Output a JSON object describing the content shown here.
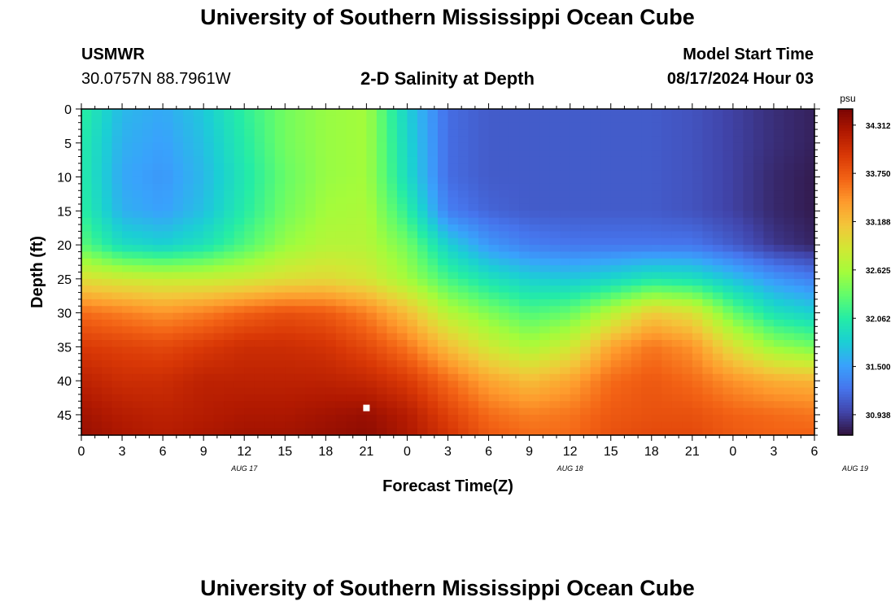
{
  "header": {
    "title": "University of Southern Mississippi Ocean Cube",
    "station": "USMWR",
    "coords": "30.0757N  88.7961W",
    "subtitle": "2-D Salinity at Depth",
    "model_start_label": "Model Start Time",
    "model_start_value": "08/17/2024 Hour 03"
  },
  "footer": {
    "title": "University of Southern Mississippi Ocean Cube"
  },
  "colors": {
    "colormap": [
      "#30123b",
      "#4145ab",
      "#4675ed",
      "#39a2fc",
      "#1bcfd4",
      "#24eca6",
      "#61fc6c",
      "#a4fc3b",
      "#d1e834",
      "#f3c63a",
      "#fe9b2d",
      "#f36315",
      "#d93806",
      "#b11901",
      "#7a0403"
    ],
    "marker": "#ffffff"
  },
  "chart_data": {
    "type": "heatmap",
    "xlabel": "Forecast Time(Z)",
    "ylabel": "Depth (ft)",
    "colorbar_unit": "psu",
    "x_tick_labels": [
      "0",
      "3",
      "6",
      "9",
      "12",
      "15",
      "18",
      "21",
      "0",
      "3",
      "6",
      "9",
      "12",
      "15",
      "18",
      "21",
      "0",
      "3",
      "6"
    ],
    "date_labels": [
      {
        "label": "AUG 17",
        "hour_index": 12
      },
      {
        "label": "AUG 18",
        "hour_index": 36
      },
      {
        "label": "AUG 19",
        "hour_index": 57
      }
    ],
    "y_ticks": [
      0,
      5,
      10,
      15,
      20,
      25,
      30,
      35,
      40,
      45
    ],
    "ylim": [
      0,
      48
    ],
    "xlim_hours": [
      0,
      54
    ],
    "color_range": [
      30.7,
      34.5
    ],
    "colorbar_ticks": [
      34.312,
      33.75,
      33.188,
      32.625,
      32.062,
      31.5,
      30.938
    ],
    "marker": {
      "hour_index": 21,
      "depth": 44
    },
    "salinity_grid": {
      "hours": [
        0,
        3,
        6,
        9,
        12,
        15,
        18,
        21,
        24,
        27,
        30,
        33,
        36,
        39,
        42,
        45,
        48,
        51,
        54
      ],
      "depths": [
        0,
        5,
        10,
        15,
        20,
        25,
        30,
        35,
        40,
        45,
        48
      ],
      "values": [
        [
          32.1,
          31.65,
          31.55,
          31.75,
          32.1,
          32.4,
          32.55,
          32.6,
          31.8,
          31.2,
          31.1,
          31.1,
          31.1,
          31.1,
          31.1,
          31.05,
          30.95,
          30.85,
          30.78
        ],
        [
          32.05,
          31.6,
          31.5,
          31.7,
          32.05,
          32.4,
          32.55,
          32.6,
          31.85,
          31.2,
          31.1,
          31.1,
          31.1,
          31.1,
          31.1,
          31.05,
          30.95,
          30.85,
          30.78
        ],
        [
          32.05,
          31.55,
          31.45,
          31.65,
          32.0,
          32.35,
          32.55,
          32.6,
          31.9,
          31.2,
          31.1,
          31.1,
          31.1,
          31.1,
          31.1,
          31.05,
          30.95,
          30.82,
          30.75
        ],
        [
          32.1,
          31.6,
          31.5,
          31.7,
          32.05,
          32.4,
          32.6,
          32.65,
          32.1,
          31.3,
          31.15,
          31.1,
          31.1,
          31.1,
          31.1,
          31.05,
          30.95,
          30.82,
          30.75
        ],
        [
          32.3,
          31.9,
          31.8,
          31.95,
          32.25,
          32.55,
          32.7,
          32.7,
          32.4,
          31.8,
          31.45,
          31.3,
          31.25,
          31.25,
          31.25,
          31.25,
          31.1,
          30.9,
          30.8
        ],
        [
          32.95,
          32.85,
          32.8,
          32.8,
          32.85,
          32.95,
          33.0,
          32.9,
          32.6,
          32.2,
          31.95,
          31.8,
          31.75,
          31.85,
          32.0,
          31.95,
          31.7,
          31.45,
          31.3
        ],
        [
          33.65,
          33.55,
          33.45,
          33.55,
          33.7,
          33.8,
          33.75,
          33.55,
          33.2,
          32.7,
          32.45,
          32.25,
          32.35,
          32.7,
          33.1,
          32.95,
          32.35,
          31.95,
          31.8
        ],
        [
          33.95,
          33.9,
          33.85,
          33.95,
          34.05,
          34.05,
          34.0,
          33.85,
          33.6,
          33.2,
          32.85,
          32.65,
          32.85,
          33.35,
          33.6,
          33.45,
          32.95,
          32.55,
          32.4
        ],
        [
          34.15,
          34.05,
          34.05,
          34.15,
          34.15,
          34.15,
          34.15,
          34.1,
          33.95,
          33.65,
          33.35,
          33.2,
          33.35,
          33.65,
          33.75,
          33.65,
          33.45,
          33.3,
          33.25
        ],
        [
          34.3,
          34.2,
          34.15,
          34.2,
          34.25,
          34.25,
          34.3,
          34.35,
          34.2,
          33.9,
          33.65,
          33.55,
          33.6,
          33.75,
          33.8,
          33.8,
          33.7,
          33.65,
          33.6
        ],
        [
          34.35,
          34.25,
          34.2,
          34.25,
          34.3,
          34.3,
          34.35,
          34.4,
          34.25,
          34.0,
          33.75,
          33.65,
          33.65,
          33.8,
          33.85,
          33.85,
          33.75,
          33.7,
          33.7
        ]
      ]
    }
  }
}
